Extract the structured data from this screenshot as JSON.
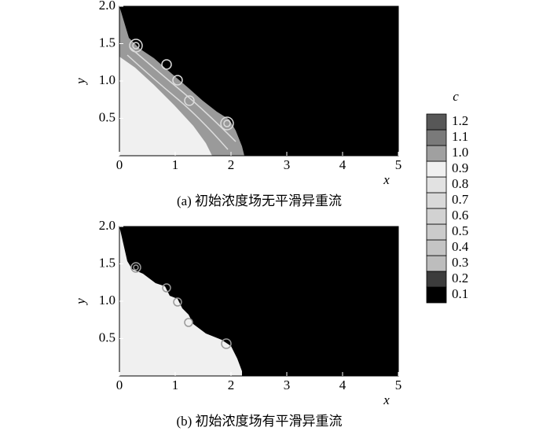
{
  "chart_data": [
    {
      "type": "contour",
      "caption": "(a) 初始浓度场无平滑异重流",
      "xlabel": "x",
      "ylabel": "y",
      "xlim": [
        0,
        5
      ],
      "ylim": [
        0,
        2
      ],
      "xticks": [
        0,
        1,
        2,
        3,
        4,
        5
      ],
      "yticks": [
        {
          "value": 0.5,
          "label": "0.5"
        },
        {
          "value": 1,
          "label": "1.0"
        },
        {
          "value": 1.5,
          "label": "1.5"
        },
        {
          "value": 2,
          "label": "2.0"
        }
      ]
    },
    {
      "type": "contour",
      "caption": "(b) 初始浓度场有平滑异重流",
      "xlabel": "x",
      "ylabel": "y",
      "xlim": [
        0,
        5
      ],
      "ylim": [
        0,
        2
      ],
      "xticks": [
        0,
        1,
        2,
        3,
        4,
        5
      ],
      "yticks": [
        {
          "value": 0.5,
          "label": "0.5"
        },
        {
          "value": 1,
          "label": "1.0"
        },
        {
          "value": 1.5,
          "label": "1.5"
        },
        {
          "value": 2,
          "label": "2.0"
        }
      ]
    }
  ],
  "colorbar": {
    "title": "c",
    "levels": [
      0.1,
      0.2,
      0.3,
      0.4,
      0.5,
      0.6,
      0.7,
      0.8,
      0.9,
      {
        "value": 1,
        "label": "1.0"
      },
      1.1,
      1.2
    ],
    "colors": [
      "#000000",
      "#3c3c3c",
      "#bdbdbd",
      "#c4c4c4",
      "#cbcbcb",
      "#d2d2d2",
      "#d9d9d9",
      "#e2e2e2",
      "#f0f0f0",
      "#a0a0a0",
      "#7a7a7a",
      "#575757"
    ]
  }
}
